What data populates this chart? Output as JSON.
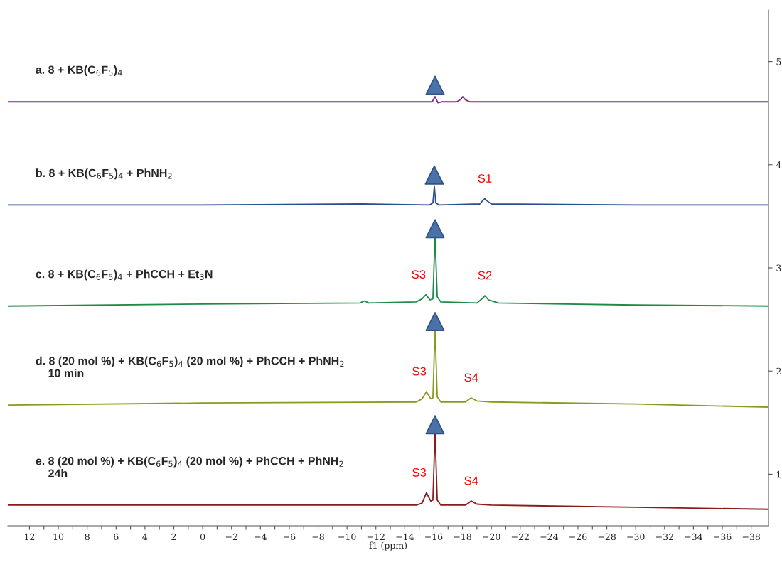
{
  "chart_data": {
    "type": "line",
    "xlabel": "f1 (ppm)",
    "xlim": [
      13.5,
      -39.2
    ],
    "ylim": [
      0.5,
      5.5
    ],
    "xticks": [
      12,
      {
        "value": 11,
        "label": null
      },
      10,
      {
        "value": 9,
        "label": null
      },
      8,
      {
        "value": 7,
        "label": null
      },
      6,
      {
        "value": 5,
        "label": null
      },
      4,
      {
        "value": 3,
        "label": null
      },
      2,
      {
        "value": 1,
        "label": null
      },
      0,
      {
        "value": -1,
        "label": null
      },
      {
        "value": -2,
        "label": "−2"
      },
      {
        "value": -3,
        "label": null
      },
      {
        "value": -4,
        "label": "−4"
      },
      {
        "value": -5,
        "label": null
      },
      {
        "value": -6,
        "label": "−6"
      },
      {
        "value": -7,
        "label": null
      },
      {
        "value": -8,
        "label": "−8"
      },
      {
        "value": -9,
        "label": null
      },
      {
        "value": -10,
        "label": "−10"
      },
      {
        "value": -11,
        "label": null
      },
      {
        "value": -12,
        "label": "−12"
      },
      {
        "value": -13,
        "label": null
      },
      {
        "value": -14,
        "label": "−14"
      },
      {
        "value": -15,
        "label": null
      },
      {
        "value": -16,
        "label": "−16"
      },
      {
        "value": -17,
        "label": null
      },
      {
        "value": -18,
        "label": "−18"
      },
      {
        "value": -19,
        "label": null
      },
      {
        "value": -20,
        "label": "−20"
      },
      {
        "value": -21,
        "label": null
      },
      {
        "value": -22,
        "label": "−22"
      },
      {
        "value": -23,
        "label": null
      },
      {
        "value": -24,
        "label": "−24"
      },
      {
        "value": -25,
        "label": null
      },
      {
        "value": -26,
        "label": "−26"
      },
      {
        "value": -27,
        "label": null
      },
      {
        "value": -28,
        "label": "−28"
      },
      {
        "value": -29,
        "label": null
      },
      {
        "value": -30,
        "label": "−30"
      },
      {
        "value": -31,
        "label": null
      },
      {
        "value": -32,
        "label": "−32"
      },
      {
        "value": -33,
        "label": null
      },
      {
        "value": -34,
        "label": "−34"
      },
      {
        "value": -35,
        "label": null
      },
      {
        "value": -36,
        "label": "−36"
      },
      {
        "value": -37,
        "label": null
      },
      {
        "value": -38,
        "label": "−38"
      }
    ],
    "yticks": [
      1,
      2,
      3,
      4,
      5
    ],
    "grid": false,
    "legend": false,
    "series": [
      {
        "name": "a. 8 + KB(C$_{6}$F$_{5}$)$_{4}$",
        "color": "#7b2d8e",
        "x": [
          13.5,
          0,
          -15.6,
          -15.9,
          -16.1,
          -16.3,
          -16.6,
          -17.6,
          -17.85,
          -18.02,
          -18.2,
          -18.5,
          -30,
          -39.2
        ],
        "values": [
          4.61,
          4.61,
          4.61,
          4.61,
          4.66,
          4.6,
          4.61,
          4.61,
          4.63,
          4.66,
          4.63,
          4.61,
          4.61,
          4.61
        ]
      },
      {
        "name": "b. 8 + KB(C$_{6}$F$_{5}$)$_{4}$ + PhNH$_{2}$",
        "color": "#2b4e8e",
        "x": [
          13.5,
          0,
          -11,
          -15.7,
          -15.95,
          -16.05,
          -16.15,
          -16.4,
          -19.2,
          -19.45,
          -19.55,
          -19.7,
          -20.0,
          -30,
          -39.2
        ],
        "values": [
          3.61,
          3.61,
          3.62,
          3.61,
          3.63,
          3.79,
          3.63,
          3.61,
          3.62,
          3.66,
          3.67,
          3.65,
          3.62,
          3.61,
          3.61
        ]
      },
      {
        "name": "c. 8 + KB(C$_{6}$F$_{5}$)$_{4}$ + PhCCH + Et$_{3}$N",
        "color": "#1e8a47",
        "x": [
          13.5,
          0,
          -10.9,
          -11.23,
          -11.5,
          -14.8,
          -15.2,
          -15.46,
          -15.75,
          -15.95,
          -16.1,
          -16.25,
          -16.5,
          -19.0,
          -19.35,
          -19.55,
          -19.8,
          -20.5,
          -30,
          -39.2
        ],
        "values": [
          2.63,
          2.65,
          2.66,
          2.68,
          2.66,
          2.67,
          2.7,
          2.74,
          2.69,
          2.7,
          3.31,
          2.72,
          2.67,
          2.66,
          2.7,
          2.73,
          2.69,
          2.66,
          2.64,
          2.63
        ]
      },
      {
        "name": "d. 8 (20 mol %) + KB(C$_{6}$F$_{5}$)$_{4}$ (20 mol %) + PhCCH + PhNH$_{2}$\n    10 min",
        "color": "#8a9a1e",
        "x": [
          13.5,
          0,
          -14.8,
          -15.2,
          -15.5,
          -15.8,
          -15.95,
          -16.1,
          -16.25,
          -16.5,
          -18.2,
          -18.6,
          -19.0,
          -20,
          -30,
          -39.2
        ],
        "values": [
          1.67,
          1.69,
          1.7,
          1.73,
          1.8,
          1.73,
          1.74,
          2.41,
          1.75,
          1.7,
          1.7,
          1.74,
          1.71,
          1.7,
          1.68,
          1.65
        ]
      },
      {
        "name": "e. 8 (20 mol %) + KB(C$_{6}$F$_{5}$)$_{4}$ (20 mol %) + PhCCH + PhNH$_{2}$\n    24h",
        "color": "#8b1a1a",
        "x": [
          13.5,
          0,
          -14.8,
          -15.2,
          -15.5,
          -15.8,
          -15.95,
          -16.1,
          -16.25,
          -16.5,
          -18.2,
          -18.6,
          -19.0,
          -20,
          -30,
          -39.2
        ],
        "values": [
          0.7,
          0.7,
          0.7,
          0.72,
          0.82,
          0.74,
          0.75,
          1.41,
          0.75,
          0.7,
          0.7,
          0.74,
          0.71,
          0.7,
          0.68,
          0.66
        ]
      },
      {
        "type": "scatter",
        "marker": "triangle",
        "color": "#4a72a8",
        "x": [
          -16.1,
          -16.05,
          -16.1,
          -16.1,
          -16.1
        ],
        "values": [
          4.77,
          3.9,
          3.38,
          2.48,
          1.48
        ]
      }
    ],
    "annotations": [
      {
        "text": "S1",
        "x": -19.55,
        "y": 3.67
      },
      {
        "text": "S3",
        "x": -15.46,
        "y": 2.74
      },
      {
        "text": "S2",
        "x": -19.55,
        "y": 2.73
      },
      {
        "text": "S3",
        "x": -15.5,
        "y": 1.8
      },
      {
        "text": "S4",
        "x": -18.6,
        "y": 1.74
      },
      {
        "text": "S3",
        "x": -15.5,
        "y": 0.82
      },
      {
        "text": "S4",
        "x": -18.6,
        "y": 0.74
      }
    ]
  }
}
